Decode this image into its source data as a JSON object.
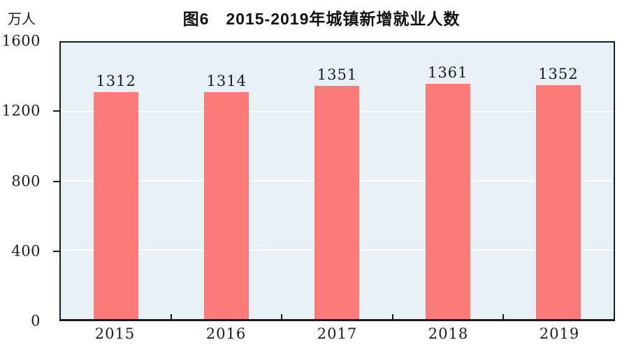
{
  "chart_data": {
    "type": "bar",
    "title": "图6　2015-2019年城镇新增就业人数",
    "unit_label": "万人",
    "categories": [
      "2015",
      "2016",
      "2017",
      "2018",
      "2019"
    ],
    "values": [
      1312,
      1314,
      1351,
      1361,
      1352
    ],
    "xlabel": "",
    "ylabel": "万人",
    "ylim": [
      0,
      1600
    ],
    "yticks": [
      0,
      400,
      800,
      1200,
      1600
    ],
    "grid": true,
    "legend_position": "none",
    "colors": {
      "bar": "#fa7a7a",
      "plot_bg": "#e7f1f5",
      "grid": "#ffffff",
      "axis": "#1a1a1a",
      "text": "#1c1c26",
      "title": "#111111"
    }
  }
}
